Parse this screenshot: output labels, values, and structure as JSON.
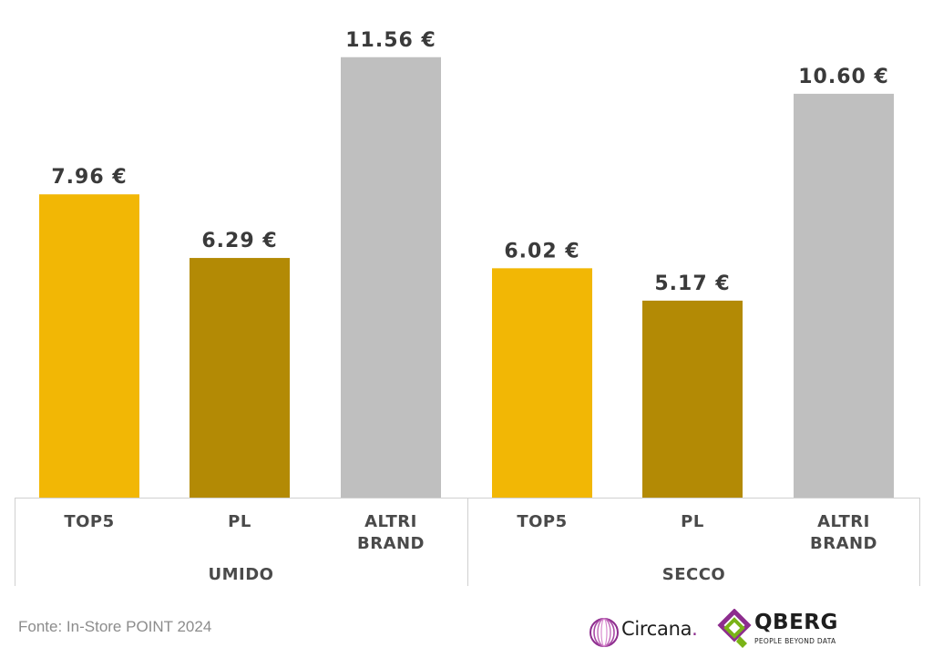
{
  "chart_data": {
    "type": "bar",
    "title": "",
    "xlabel": "",
    "ylabel": "",
    "ylim": [
      0,
      12.2
    ],
    "grid": false,
    "groups": [
      {
        "name": "UMIDO",
        "bars": [
          {
            "label": [
              "TOP5"
            ],
            "value": 7.96,
            "value_label": "7.96 €",
            "color": "#F2B705"
          },
          {
            "label": [
              "PL"
            ],
            "value": 6.29,
            "value_label": "6.29 €",
            "color": "#B38A05"
          },
          {
            "label": [
              "ALTRI",
              "BRAND"
            ],
            "value": 11.56,
            "value_label": "11.56 €",
            "color": "#BFBFBF"
          }
        ]
      },
      {
        "name": "SECCO",
        "bars": [
          {
            "label": [
              "TOP5"
            ],
            "value": 6.02,
            "value_label": "6.02 €",
            "color": "#F2B705"
          },
          {
            "label": [
              "PL"
            ],
            "value": 5.17,
            "value_label": "5.17 €",
            "color": "#B38A05"
          },
          {
            "label": [
              "ALTRI",
              "BRAND"
            ],
            "value": 10.6,
            "value_label": "10.60 €",
            "color": "#BFBFBF"
          }
        ]
      }
    ]
  },
  "footer": {
    "source": "Fonte: In-Store POINT 2024"
  },
  "logos": {
    "circana": {
      "text": "Circana",
      "dot": ".",
      "color": "#8D2D8E"
    },
    "qberg": {
      "text": "QBERG",
      "tagline": "PEOPLE BEYOND DATA",
      "colors": [
        "#8D2D8E",
        "#7AB317"
      ]
    }
  }
}
